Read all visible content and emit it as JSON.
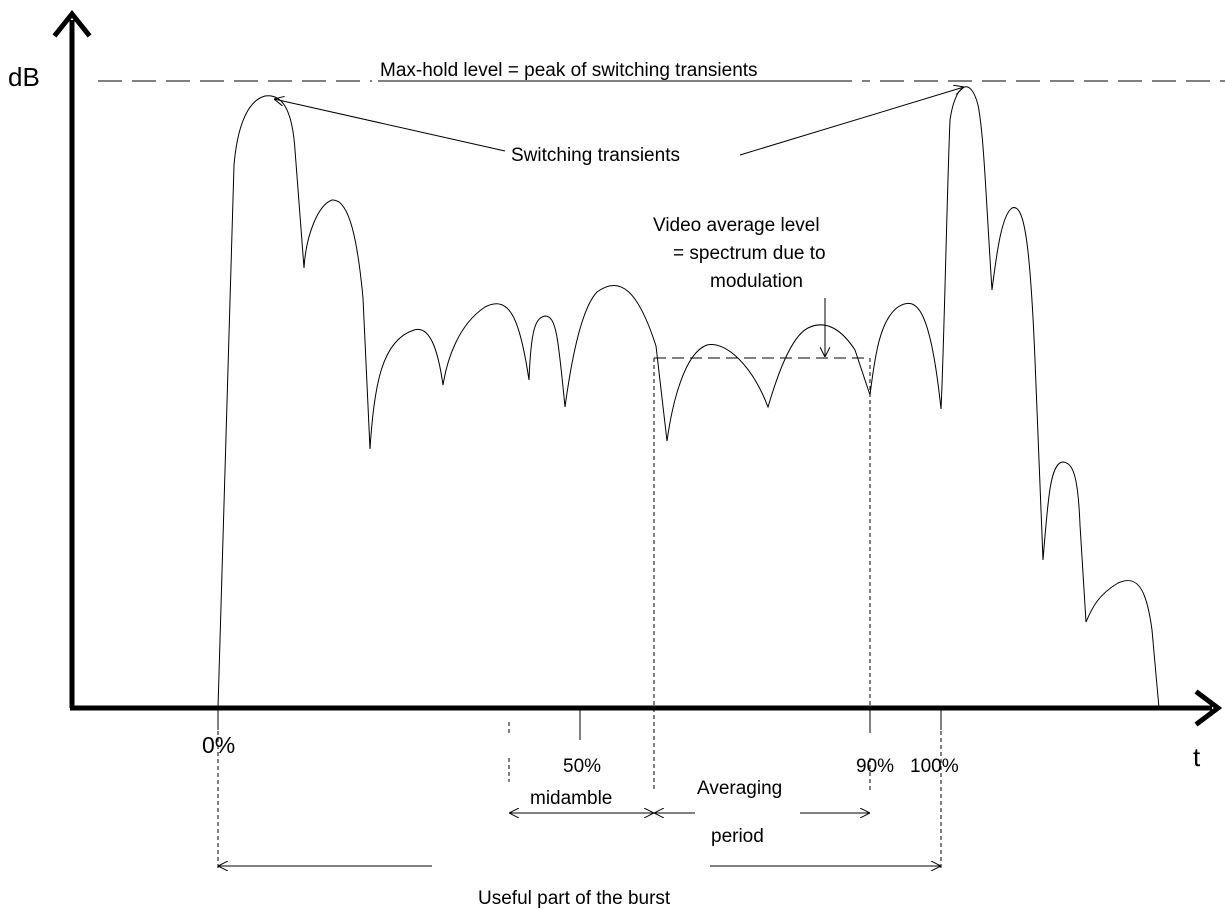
{
  "axes": {
    "y_label": "dB",
    "x_label": "t"
  },
  "annotations": {
    "max_hold": "Max-hold level = peak of switching transients",
    "switching_transients": "Switching transients",
    "video_avg_line1": "Video average level",
    "video_avg_line2": "= spectrum due to",
    "video_avg_line3": "modulation"
  },
  "ticks": {
    "t0": "0%",
    "t50": "50%",
    "t90": "90%",
    "t100": "100%"
  },
  "spans": {
    "midamble": "midamble",
    "averaging_line1": "Averaging",
    "averaging_line2": "period",
    "useful_part": "Useful part of the burst"
  }
}
